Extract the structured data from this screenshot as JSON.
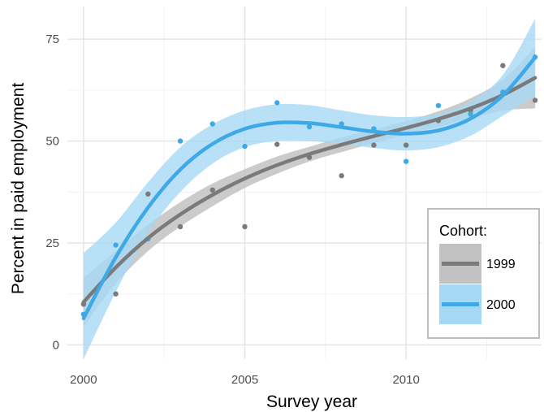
{
  "chart_data": {
    "type": "scatter",
    "title": "",
    "xlabel": "Survey year",
    "ylabel": "Percent in paid employment",
    "xlim": [
      1999.5,
      2014.2
    ],
    "ylim": [
      -3.5,
      83
    ],
    "xticks": [
      2000,
      2005,
      2010
    ],
    "xtick_labels": [
      "2000",
      "2005",
      "2010"
    ],
    "yticks": [
      0,
      25,
      50,
      75
    ],
    "ytick_labels": [
      "0",
      "25",
      "50",
      "75"
    ],
    "grid": true,
    "legend": {
      "title": "Cohort:",
      "position": "bottom-right"
    },
    "series": [
      {
        "name": "1999",
        "color": "#7a7a7a",
        "band_color": "#c2c2c2",
        "x": [
          2000,
          2001,
          2002,
          2003,
          2004,
          2005,
          2006,
          2007,
          2008,
          2009,
          2010,
          2011,
          2012,
          2013,
          2014
        ],
        "y": [
          10,
          12.5,
          37,
          29,
          38,
          29,
          49.2,
          46,
          41.5,
          49,
          49,
          55,
          57.5,
          68.5,
          60
        ],
        "smooth": {
          "x": [
            2000,
            2001,
            2002,
            2003,
            2004,
            2005,
            2006,
            2007,
            2008,
            2009,
            2010,
            2011,
            2012,
            2013,
            2014
          ],
          "y": [
            10.5,
            19,
            26.2,
            32,
            36.8,
            40.8,
            44.1,
            46.8,
            49.1,
            51.2,
            53.2,
            55.4,
            58,
            61.3,
            65.5
          ],
          "lo": [
            4.5,
            15,
            23,
            29,
            34,
            38.5,
            42,
            45,
            47.3,
            49.5,
            51.5,
            53.5,
            55.5,
            57.5,
            58
          ],
          "hi": [
            16.5,
            23,
            29.5,
            35,
            39.6,
            43.1,
            46.2,
            48.6,
            50.9,
            52.9,
            54.9,
            57.3,
            60.5,
            65.1,
            73
          ]
        }
      },
      {
        "name": "2000",
        "color": "#3fa9e8",
        "band_color": "#a6d8f4",
        "x": [
          2000,
          2001,
          2002,
          2003,
          2004,
          2005,
          2006,
          2007,
          2008,
          2009,
          2010,
          2011,
          2012,
          2013,
          2014
        ],
        "y": [
          7.5,
          24.5,
          26,
          50,
          54.2,
          48.7,
          59.4,
          53.5,
          54.2,
          53,
          45,
          58.7,
          56.6,
          62,
          70.6
        ],
        "smooth": {
          "x": [
            2000,
            2001,
            2002,
            2003,
            2004,
            2005,
            2006,
            2007,
            2008,
            2009,
            2010,
            2011,
            2012,
            2013,
            2014
          ],
          "y": [
            6.5,
            21.5,
            33.7,
            43,
            49.3,
            53,
            54.5,
            54.4,
            53.4,
            52.3,
            51.8,
            52.6,
            55.5,
            61.2,
            70.5
          ],
          "lo": [
            -3.5,
            13,
            27.5,
            37.5,
            44.5,
            48.5,
            50,
            50,
            49.3,
            48.3,
            47.7,
            48.5,
            51.3,
            56.2,
            61
          ],
          "hi": [
            22.5,
            30,
            39.9,
            48.5,
            54.1,
            57.5,
            59,
            58.8,
            57.5,
            56.3,
            55.9,
            56.7,
            59.7,
            66.2,
            80
          ]
        }
      }
    ]
  }
}
